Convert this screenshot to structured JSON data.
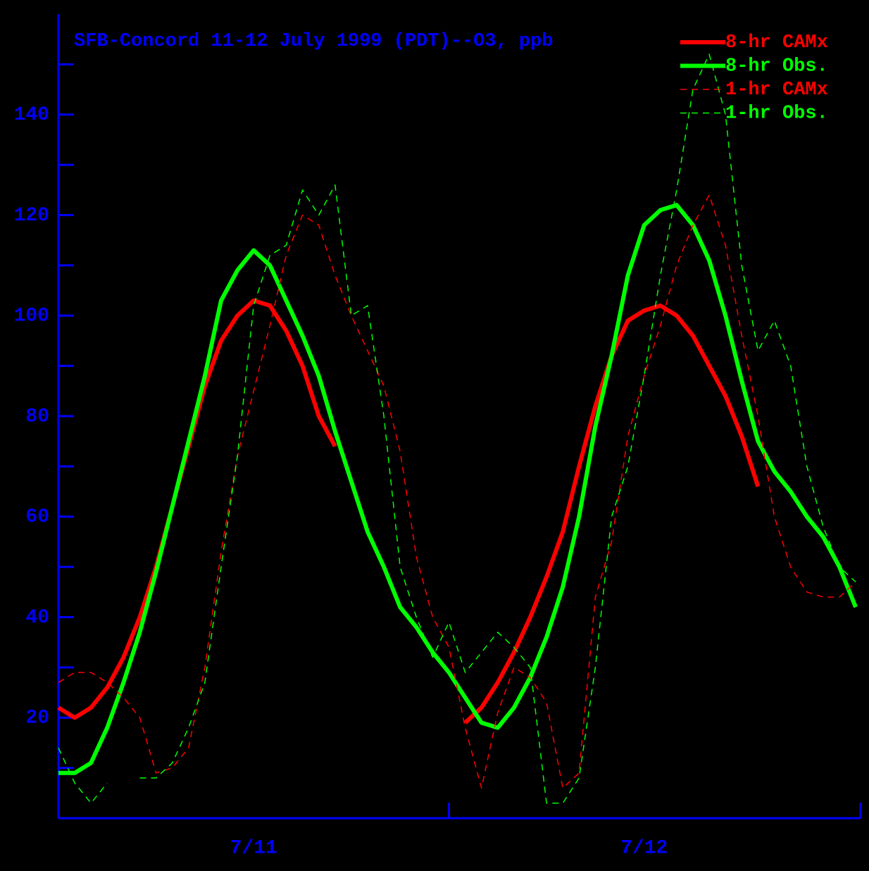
{
  "chart_data": {
    "type": "line",
    "title": "SFB-Concord 11-12 July 1999 (PDT)--O3, ppb",
    "x": [
      0,
      1,
      2,
      3,
      4,
      5,
      6,
      7,
      8,
      9,
      10,
      11,
      12,
      13,
      14,
      15,
      16,
      17,
      18,
      19,
      20,
      21,
      22,
      23,
      24,
      25,
      26,
      27,
      28,
      29,
      30,
      31,
      32,
      33,
      34,
      35,
      36,
      37,
      38,
      39,
      40,
      41,
      42,
      43,
      44,
      45,
      46,
      47,
      48,
      49
    ],
    "xlim": [
      0,
      49.3
    ],
    "xticks": [
      {
        "value": 12,
        "label": "7/11"
      },
      {
        "value": 36,
        "label": "7/12"
      }
    ],
    "xdivider": 24,
    "ylim": [
      0,
      160
    ],
    "yticks": [
      20,
      40,
      60,
      80,
      100,
      120,
      140
    ],
    "yticks_minor": [
      10,
      30,
      50,
      70,
      90,
      110,
      130,
      150
    ],
    "axis_color": "#0000ff",
    "background": "#000000",
    "legend": "top-right",
    "series": [
      {
        "name": "8-hr CAMx",
        "color": "#ff0000",
        "style": "solid",
        "values": [
          22,
          20,
          22,
          26,
          32,
          40,
          50,
          62,
          74,
          86,
          95,
          100,
          103,
          102,
          97,
          90,
          80,
          74,
          null,
          null,
          null,
          null,
          null,
          null,
          null,
          19,
          22,
          27,
          33,
          40,
          48,
          57,
          70,
          82,
          92,
          99,
          101,
          102,
          100,
          96,
          90,
          84,
          76,
          66,
          null,
          null,
          null,
          null,
          null,
          null
        ]
      },
      {
        "name": "8-hr Obs.",
        "color": "#00ff00",
        "style": "solid",
        "values": [
          9,
          9,
          11,
          18,
          27,
          37,
          49,
          62,
          75,
          88,
          103,
          109,
          113,
          110,
          103,
          96,
          88,
          77,
          67,
          57,
          50,
          42,
          38,
          33,
          29,
          24,
          19,
          18,
          22,
          28,
          36,
          46,
          60,
          78,
          92,
          108,
          118,
          121,
          122,
          118,
          111,
          100,
          87,
          75,
          69,
          65,
          60,
          56,
          50,
          42
        ]
      },
      {
        "name": "1-hr CAMx",
        "color": "#ff0000",
        "style": "dashed",
        "values": [
          27,
          29,
          29,
          27,
          24,
          20,
          9,
          10,
          14,
          30,
          53,
          72,
          85,
          98,
          112,
          120,
          118,
          108,
          100,
          93,
          86,
          73,
          52,
          40,
          34,
          18,
          6,
          21,
          30,
          28,
          23,
          6,
          9,
          44,
          55,
          76,
          88,
          98,
          110,
          118,
          124,
          114,
          96,
          80,
          60,
          50,
          45,
          44,
          44,
          47
        ]
      },
      {
        "name": "1-hr Obs.",
        "color": "#00ff00",
        "style": "dashed",
        "values": [
          14,
          7,
          3,
          7,
          null,
          8,
          8,
          11,
          18,
          27,
          50,
          72,
          102,
          112,
          114,
          125,
          120,
          126,
          100,
          102,
          80,
          50,
          40,
          32,
          39,
          29,
          33,
          37,
          34,
          30,
          3,
          3,
          8,
          30,
          60,
          70,
          88,
          108,
          125,
          145,
          152,
          140,
          110,
          93,
          99,
          90,
          70,
          58,
          50,
          47
        ]
      }
    ]
  }
}
